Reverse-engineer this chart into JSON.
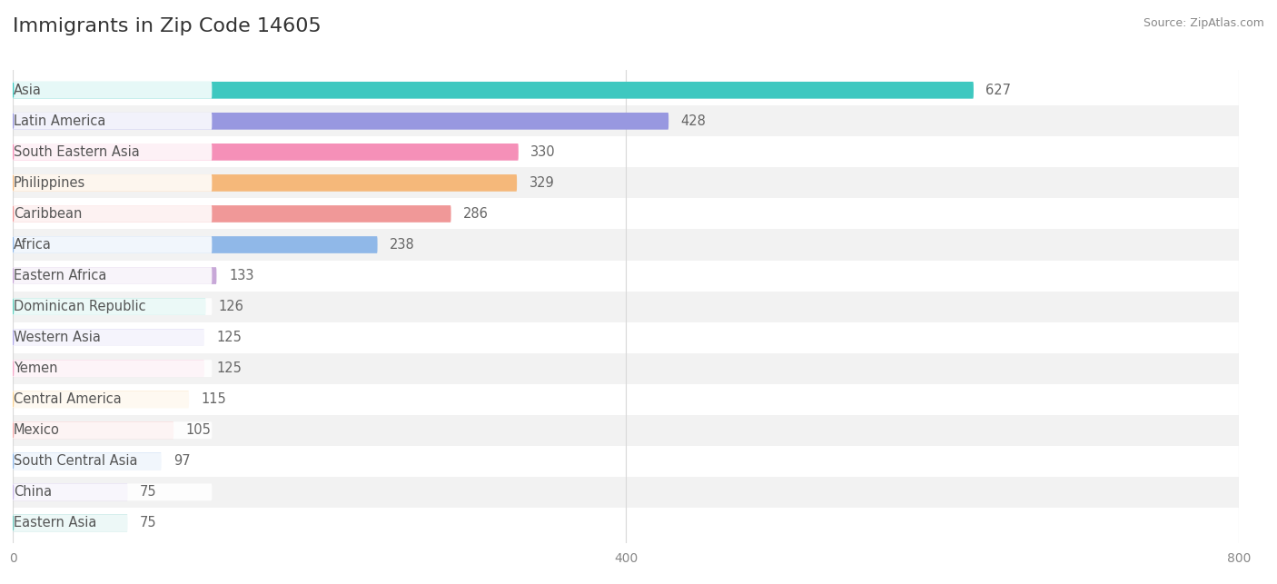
{
  "title": "Immigrants in Zip Code 14605",
  "source_text": "Source: ZipAtlas.com",
  "categories": [
    "Asia",
    "Latin America",
    "South Eastern Asia",
    "Philippines",
    "Caribbean",
    "Africa",
    "Eastern Africa",
    "Dominican Republic",
    "Western Asia",
    "Yemen",
    "Central America",
    "Mexico",
    "South Central Asia",
    "China",
    "Eastern Asia"
  ],
  "values": [
    627,
    428,
    330,
    329,
    286,
    238,
    133,
    126,
    125,
    125,
    115,
    105,
    97,
    75,
    75
  ],
  "bar_colors": [
    "#3ec8c0",
    "#9898e0",
    "#f590b8",
    "#f5b87a",
    "#f09898",
    "#90b8e8",
    "#c8a8d8",
    "#60d0c0",
    "#b0a8e8",
    "#f5a8c8",
    "#f8d090",
    "#f5a8a8",
    "#90b8e8",
    "#c8b8e8",
    "#70c8c0"
  ],
  "xlim": [
    0,
    800
  ],
  "background_color": "#ffffff",
  "row_even_color": "#ffffff",
  "row_odd_color": "#f2f2f2",
  "title_fontsize": 16,
  "label_fontsize": 10.5,
  "value_fontsize": 10.5,
  "grid_color": "#d8d8d8"
}
